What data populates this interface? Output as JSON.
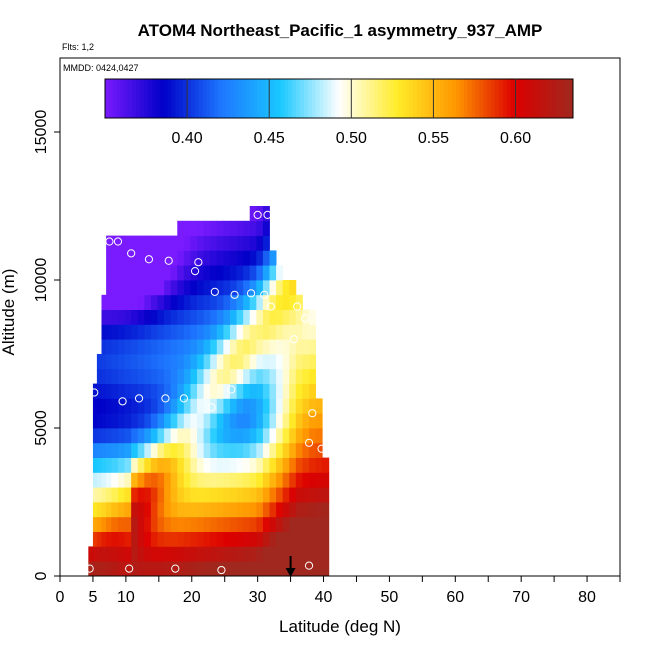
{
  "chart_data": {
    "type": "heatmap",
    "title": "ATOM4 Northeast_Pacific_1 asymmetry_937_AMP",
    "flights_label": "Flts: 1,2",
    "date_label": "MMDD: 0424,0427",
    "xlabel": "Latitude (deg N)",
    "ylabel": "Altitude (m)",
    "xlim": [
      0,
      85
    ],
    "ylim": [
      0,
      17500
    ],
    "x_ticks": [
      0,
      5,
      10,
      20,
      30,
      40,
      50,
      60,
      70,
      80
    ],
    "x_minor_ticks": [
      15,
      25,
      35,
      45,
      55,
      65,
      75,
      85
    ],
    "y_ticks": [
      0,
      5000,
      10000,
      15000
    ],
    "colorbar": {
      "min": 0.35,
      "max": 0.635,
      "ticks": [
        0.4,
        0.45,
        0.5,
        0.55,
        0.6
      ],
      "tick_labels": [
        "0.40",
        "0.45",
        "0.50",
        "0.55",
        "0.60"
      ],
      "colors": [
        "#7a1aff",
        "#0000c8",
        "#1e78ff",
        "#19c8ff",
        "#ffffff",
        "#ffec28",
        "#ff9600",
        "#dc0000",
        "#a0281e"
      ]
    },
    "columns": [
      {
        "lat": 4.3,
        "top": 1000
      },
      {
        "lat": 5.0,
        "top": 6200
      },
      {
        "lat": 5.6,
        "top": 7500
      },
      {
        "lat": 6.3,
        "top": 9200
      },
      {
        "lat": 7.0,
        "top": 11500
      },
      {
        "lat": 7.8,
        "top": 11500
      },
      {
        "lat": 8.8,
        "top": 11500
      },
      {
        "lat": 9.8,
        "top": 11500
      },
      {
        "lat": 10.8,
        "top": 11500
      },
      {
        "lat": 11.8,
        "top": 11500
      },
      {
        "lat": 12.8,
        "top": 11500
      },
      {
        "lat": 13.8,
        "top": 11500
      },
      {
        "lat": 14.8,
        "top": 11400
      },
      {
        "lat": 15.8,
        "top": 11300
      },
      {
        "lat": 16.8,
        "top": 11300
      },
      {
        "lat": 17.8,
        "top": 11900
      },
      {
        "lat": 18.8,
        "top": 11900
      },
      {
        "lat": 19.8,
        "top": 11900
      },
      {
        "lat": 20.8,
        "top": 11900
      },
      {
        "lat": 21.8,
        "top": 11900
      },
      {
        "lat": 22.8,
        "top": 11900
      },
      {
        "lat": 23.8,
        "top": 11900
      },
      {
        "lat": 24.8,
        "top": 11900
      },
      {
        "lat": 25.8,
        "top": 11900
      },
      {
        "lat": 26.8,
        "top": 11900
      },
      {
        "lat": 27.8,
        "top": 12000
      },
      {
        "lat": 28.8,
        "top": 12400
      },
      {
        "lat": 29.8,
        "top": 12400
      },
      {
        "lat": 30.8,
        "top": 12400
      },
      {
        "lat": 31.8,
        "top": 11000
      },
      {
        "lat": 32.8,
        "top": 10500
      },
      {
        "lat": 33.8,
        "top": 10000
      },
      {
        "lat": 34.8,
        "top": 9800
      },
      {
        "lat": 35.8,
        "top": 9300
      },
      {
        "lat": 36.8,
        "top": 9000
      },
      {
        "lat": 37.8,
        "top": 8700
      },
      {
        "lat": 38.8,
        "top": 6000
      },
      {
        "lat": 39.8,
        "top": 4000
      }
    ],
    "sample_points": [
      {
        "lat": 4.5,
        "alt": 250
      },
      {
        "lat": 10.5,
        "alt": 250
      },
      {
        "lat": 17.5,
        "alt": 250
      },
      {
        "lat": 24.5,
        "alt": 200
      },
      {
        "lat": 37.8,
        "alt": 350
      },
      {
        "lat": 7.5,
        "alt": 11300
      },
      {
        "lat": 8.8,
        "alt": 11300
      },
      {
        "lat": 6.0,
        "alt": 11300
      },
      {
        "lat": 10.8,
        "alt": 10900
      },
      {
        "lat": 13.5,
        "alt": 10700
      },
      {
        "lat": 16.5,
        "alt": 10650
      },
      {
        "lat": 21.0,
        "alt": 10600
      },
      {
        "lat": 20.5,
        "alt": 10300
      },
      {
        "lat": 23.5,
        "alt": 9600
      },
      {
        "lat": 26.5,
        "alt": 9500
      },
      {
        "lat": 29.0,
        "alt": 9550
      },
      {
        "lat": 31.0,
        "alt": 9500
      },
      {
        "lat": 32.0,
        "alt": 9100
      },
      {
        "lat": 36.0,
        "alt": 9100
      },
      {
        "lat": 37.2,
        "alt": 8700
      },
      {
        "lat": 35.5,
        "alt": 8000
      },
      {
        "lat": 4.0,
        "alt": 5800
      },
      {
        "lat": 5.2,
        "alt": 6200
      },
      {
        "lat": 9.5,
        "alt": 5900
      },
      {
        "lat": 12.0,
        "alt": 6000
      },
      {
        "lat": 16.0,
        "alt": 6000
      },
      {
        "lat": 18.8,
        "alt": 6000
      },
      {
        "lat": 26.0,
        "alt": 6300
      },
      {
        "lat": 23.0,
        "alt": 5700
      },
      {
        "lat": 38.3,
        "alt": 5500
      },
      {
        "lat": 37.8,
        "alt": 4500
      },
      {
        "lat": 39.7,
        "alt": 4300
      },
      {
        "lat": 30.0,
        "alt": 12200
      },
      {
        "lat": 31.5,
        "alt": 12200
      }
    ],
    "marker_lat": 35,
    "marker_label": "flight position arrow"
  }
}
